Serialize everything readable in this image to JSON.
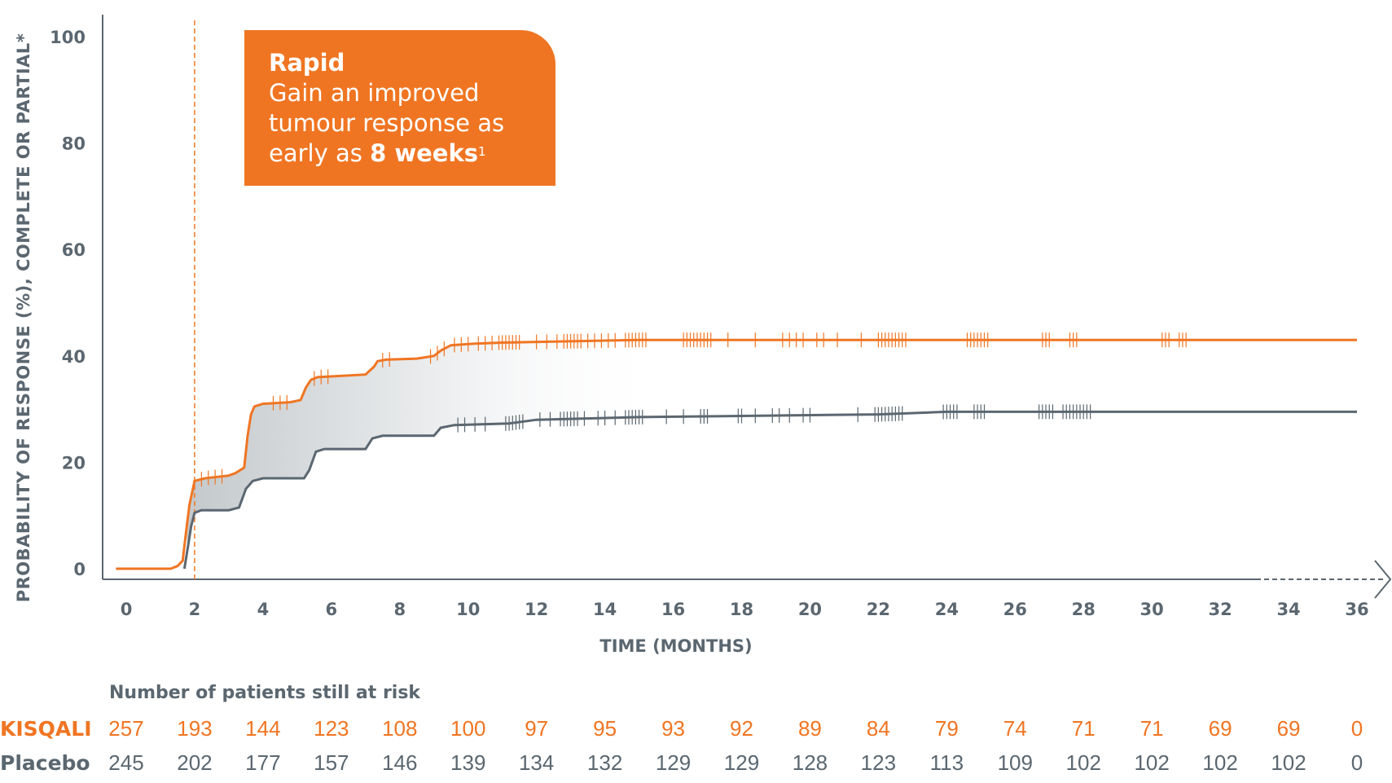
{
  "chart_data": {
    "type": "line",
    "ylabel": "PROBABILITY OF RESPONSE (%), COMPLETE OR PARTIAL*",
    "xlabel": "TIME (MONTHS)",
    "y_ticks": [
      "100",
      "80",
      "60",
      "40",
      "20",
      "0"
    ],
    "x_ticks": [
      "0",
      "2",
      "4",
      "6",
      "8",
      "10",
      "12",
      "14",
      "16",
      "18",
      "20",
      "22",
      "24",
      "26",
      "28",
      "30",
      "32",
      "34",
      "36"
    ],
    "xlim": [
      0,
      36
    ],
    "ylim": [
      0,
      100
    ],
    "marker_line_x": 2,
    "series": [
      {
        "color": "#f07522",
        "points": [
          [
            -0.3,
            0
          ],
          [
            1.3,
            0
          ],
          [
            1.5,
            0.5
          ],
          [
            1.65,
            1.5
          ],
          [
            1.75,
            7
          ],
          [
            1.85,
            12
          ],
          [
            2.0,
            16.5
          ],
          [
            2.3,
            17
          ],
          [
            3.0,
            17.5
          ],
          [
            3.2,
            18
          ],
          [
            3.45,
            19
          ],
          [
            3.55,
            25
          ],
          [
            3.65,
            29
          ],
          [
            3.75,
            30.5
          ],
          [
            4.0,
            31
          ],
          [
            4.8,
            31.3
          ],
          [
            5.1,
            31.7
          ],
          [
            5.25,
            34
          ],
          [
            5.4,
            35.5
          ],
          [
            5.6,
            36
          ],
          [
            7.0,
            36.5
          ],
          [
            7.25,
            38
          ],
          [
            7.35,
            39
          ],
          [
            7.6,
            39.3
          ],
          [
            8.5,
            39.5
          ],
          [
            9.0,
            40
          ],
          [
            9.2,
            41
          ],
          [
            9.5,
            42
          ],
          [
            10.2,
            42.3
          ],
          [
            11,
            42.5
          ],
          [
            15,
            43
          ],
          [
            36,
            43
          ]
        ]
      },
      {
        "color": "#5b6770",
        "points": [
          [
            1.7,
            0
          ],
          [
            1.8,
            4
          ],
          [
            1.9,
            8
          ],
          [
            2.0,
            10.5
          ],
          [
            2.2,
            11
          ],
          [
            3.0,
            11
          ],
          [
            3.3,
            11.5
          ],
          [
            3.5,
            15
          ],
          [
            3.7,
            16.5
          ],
          [
            4.0,
            17
          ],
          [
            5.2,
            17
          ],
          [
            5.35,
            18.5
          ],
          [
            5.55,
            22
          ],
          [
            5.8,
            22.5
          ],
          [
            7.0,
            22.5
          ],
          [
            7.2,
            24.5
          ],
          [
            7.5,
            25
          ],
          [
            9.0,
            25
          ],
          [
            9.2,
            26.5
          ],
          [
            9.6,
            27
          ],
          [
            11.2,
            27.3
          ],
          [
            12,
            28
          ],
          [
            15,
            28.5
          ],
          [
            22,
            29
          ],
          [
            24,
            29.5
          ],
          [
            36,
            29.5
          ]
        ]
      }
    ],
    "censor_ticks": {
      "kisqali": [
        2.2,
        2.4,
        2.6,
        2.8,
        4.3,
        4.5,
        4.7,
        5.5,
        5.7,
        5.9,
        7.5,
        7.7,
        8.9,
        9.1,
        9.3,
        9.6,
        9.8,
        10.0,
        10.3,
        10.5,
        10.7,
        10.9,
        11.0,
        11.1,
        11.2,
        11.3,
        11.4,
        11.5,
        12.0,
        12.3,
        12.6,
        12.8,
        12.9,
        13.0,
        13.1,
        13.2,
        13.3,
        13.5,
        13.7,
        13.9,
        14.1,
        14.3,
        14.6,
        14.7,
        14.8,
        14.9,
        15.0,
        15.1,
        15.2,
        16.3,
        16.4,
        16.5,
        16.6,
        16.7,
        16.8,
        16.9,
        17.0,
        17.1,
        17.6,
        18.4,
        19.2,
        19.4,
        19.6,
        19.8,
        20.2,
        20.4,
        20.8,
        21.5,
        22.0,
        22.1,
        22.2,
        22.3,
        22.4,
        22.5,
        22.6,
        22.7,
        22.8,
        24.6,
        24.7,
        24.8,
        24.9,
        25.0,
        25.1,
        25.2,
        26.8,
        26.9,
        27.0,
        27.6,
        27.7,
        27.8,
        30.3,
        30.4,
        30.5,
        30.8,
        30.9,
        31.0
      ],
      "placebo": [
        9.7,
        9.9,
        10.2,
        10.5,
        11.1,
        11.2,
        11.3,
        11.4,
        11.5,
        11.6,
        12.1,
        12.4,
        12.7,
        12.8,
        12.9,
        13.0,
        13.1,
        13.2,
        13.4,
        13.8,
        14.0,
        14.3,
        14.6,
        14.7,
        14.8,
        14.9,
        15.0,
        15.1,
        15.8,
        16.3,
        16.8,
        16.9,
        17.0,
        17.9,
        18.0,
        18.4,
        18.9,
        19.1,
        19.4,
        19.8,
        20.0,
        21.4,
        21.9,
        22.0,
        22.1,
        22.2,
        22.3,
        22.4,
        22.5,
        22.6,
        22.7,
        23.9,
        24.0,
        24.1,
        24.2,
        24.3,
        24.8,
        24.9,
        25.0,
        25.1,
        26.7,
        26.8,
        26.9,
        27.0,
        27.1,
        27.4,
        27.5,
        27.6,
        27.7,
        27.8,
        27.9,
        28.0,
        28.1,
        28.2
      ]
    }
  },
  "callout": {
    "title": "Rapid",
    "line1": "Gain an improved",
    "line2": "tumour response as",
    "line3_prefix": "early as ",
    "line3_bold": "8 weeks",
    "footnote": "1"
  },
  "risk_table": {
    "title": "Number of patients still at risk",
    "rows": [
      {
        "label": "KISQALI",
        "color": "#f07522",
        "values": [
          "257",
          "193",
          "144",
          "123",
          "108",
          "100",
          "97",
          "95",
          "93",
          "92",
          "89",
          "84",
          "79",
          "74",
          "71",
          "71",
          "69",
          "69",
          "0"
        ]
      },
      {
        "label": "Placebo",
        "color": "#5b6770",
        "values": [
          "245",
          "202",
          "177",
          "157",
          "146",
          "139",
          "134",
          "132",
          "129",
          "129",
          "128",
          "123",
          "113",
          "109",
          "102",
          "102",
          "102",
          "102",
          "0"
        ]
      }
    ]
  }
}
